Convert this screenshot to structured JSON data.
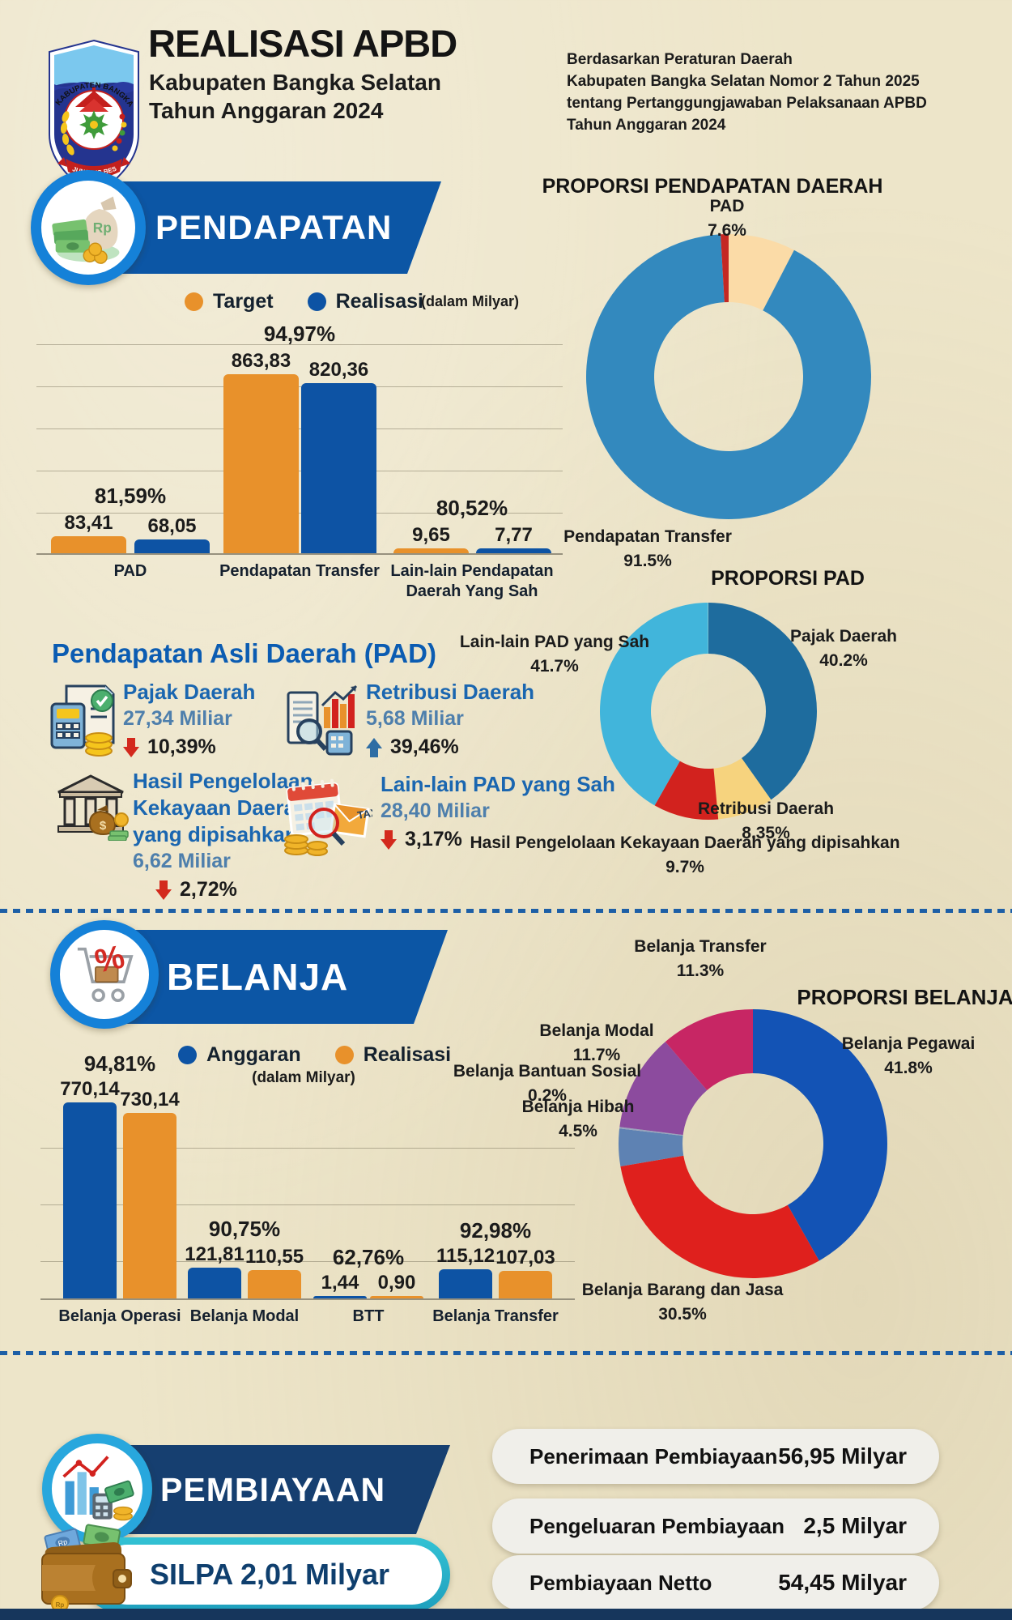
{
  "header": {
    "title": "REALISASI APBD",
    "subtitle1": "Kabupaten Bangka Selatan",
    "subtitle2": "Tahun Anggaran 2024",
    "legal": "Berdasarkan Peraturan Daerah\nKabupaten Bangka Selatan Nomor 2 Tahun 2025\ntentang Pertanggungjawaban Pelaksanaan APBD\nTahun Anggaran 2024",
    "logo": {
      "region": "KABUPATEN BANGKA SELATAN",
      "motto": "JUNJUNG BESAOH"
    }
  },
  "pendapatan": {
    "banner": "PENDAPATAN",
    "legend": [
      {
        "label": "Target",
        "color": "#E8912B"
      },
      {
        "label": "Realisasi",
        "color": "#0D53A4"
      }
    ],
    "unit": "(dalam Milyar)"
  },
  "pad_section": {
    "title": "Pendapatan Asli Daerah (PAD)",
    "items": [
      {
        "name": "Pajak Daerah",
        "value": "27,34 Miliar",
        "change": "10,39%",
        "direction": "down",
        "icon": "tax-calculator-icon"
      },
      {
        "name": "Retribusi Daerah",
        "value": "5,68 Miliar",
        "change": "39,46%",
        "direction": "up",
        "icon": "report-magnifier-icon"
      },
      {
        "name": "Hasil Pengelolaan Kekayaan Daerah yang dipisahkan",
        "value": "6,62 Miliar",
        "change": "2,72%",
        "direction": "down",
        "icon": "bank-building-icon"
      },
      {
        "name": "Lain-lain PAD yang Sah",
        "value": "28,40 Miliar",
        "change": "3,17%",
        "direction": "down",
        "icon": "tax-calendar-icon"
      }
    ]
  },
  "belanja": {
    "banner": "BELANJA",
    "legend": [
      {
        "label": "Anggaran",
        "color": "#0D53A4"
      },
      {
        "label": "Realisasi",
        "color": "#E8912B"
      }
    ],
    "unit": "(dalam Milyar)"
  },
  "pembiayaan": {
    "banner": "PEMBIAYAAN",
    "rows": [
      {
        "label": "Penerimaan Pembiayaan",
        "value": "56,95 Milyar"
      },
      {
        "label": "Pengeluaran Pembiayaan",
        "value": "2,5 Milyar"
      },
      {
        "label": "Pembiayaan Netto",
        "value": "54,45 Milyar"
      }
    ],
    "silpa": "SILPA 2,01 Milyar"
  },
  "chart_data": [
    {
      "id": "pendapatan_bar",
      "type": "bar",
      "title": "PENDAPATAN",
      "unit": "Milyar",
      "grid": true,
      "legend_position": "top",
      "ylim": [
        0,
        1050
      ],
      "categories": [
        "PAD",
        "Pendapatan Transfer",
        "Lain-lain Pendapatan Daerah Yang Sah"
      ],
      "series": [
        {
          "name": "Target",
          "color": "#E8912B",
          "values": [
            83.41,
            863.83,
            9.65
          ]
        },
        {
          "name": "Realisasi",
          "color": "#0D53A4",
          "values": [
            68.05,
            820.36,
            7.77
          ]
        }
      ],
      "value_labels": [
        [
          "83,41",
          "863,83",
          "9,65"
        ],
        [
          "68,05",
          "820,36",
          "7,77"
        ]
      ],
      "pct_labels": [
        "81,59%",
        "94,97%",
        "80,52%"
      ]
    },
    {
      "id": "pendapatan_donut",
      "type": "pie",
      "title": "PROPORSI PENDAPATAN DAERAH",
      "slices": [
        {
          "label": "PAD",
          "pct": 7.6,
          "color": "#FBDBA7"
        },
        {
          "label": "Pendapatan Transfer",
          "pct": 91.5,
          "color": "#3389BE"
        },
        {
          "label": "Lain-lain Pendapatan Daerah Yang Sah",
          "pct": 0.9,
          "color": "#C42823"
        }
      ]
    },
    {
      "id": "pad_donut",
      "type": "pie",
      "title": "PROPORSI PAD",
      "slices": [
        {
          "label": "Pajak Daerah",
          "pct": 40.2,
          "color": "#1E6C9E"
        },
        {
          "label": "Retribusi Daerah",
          "pct": 8.35,
          "color": "#F6D37E"
        },
        {
          "label": "Hasil Pengelolaan Kekayaan Daerah yang dipisahkan",
          "pct": 9.7,
          "color": "#D2221E"
        },
        {
          "label": "Lain-lain PAD yang Sah",
          "pct": 41.7,
          "color": "#41B5DB"
        }
      ]
    },
    {
      "id": "belanja_bar",
      "type": "bar",
      "title": "BELANJA",
      "unit": "Milyar",
      "grid": true,
      "legend_position": "top",
      "ylim": [
        0,
        840
      ],
      "categories": [
        "Belanja Operasi",
        "Belanja Modal",
        "BTT",
        "Belanja Transfer"
      ],
      "series": [
        {
          "name": "Anggaran",
          "color": "#0D53A4",
          "values": [
            770.14,
            121.81,
            1.44,
            115.12
          ]
        },
        {
          "name": "Realisasi",
          "color": "#E8912B",
          "values": [
            730.14,
            110.55,
            0.9,
            107.03
          ]
        }
      ],
      "value_labels": [
        [
          "770,14",
          "121,81",
          "1,44",
          "115,12"
        ],
        [
          "730,14",
          "110,55",
          "0,90",
          "107,03"
        ]
      ],
      "pct_labels": [
        "94,81%",
        "90,75%",
        "62,76%",
        "92,98%"
      ]
    },
    {
      "id": "belanja_donut",
      "type": "pie",
      "title": "PROPORSI BELANJA",
      "slices": [
        {
          "label": "Belanja Pegawai",
          "pct": 41.8,
          "color": "#1353B5"
        },
        {
          "label": "Belanja Barang dan Jasa",
          "pct": 30.5,
          "color": "#DF201D"
        },
        {
          "label": "Belanja Hibah",
          "pct": 4.5,
          "color": "#5E82B3"
        },
        {
          "label": "Belanja Bantuan Sosial",
          "pct": 0.2,
          "color": "#98A5BF"
        },
        {
          "label": "Belanja Modal",
          "pct": 11.7,
          "color": "#8C4B9E"
        },
        {
          "label": "Belanja Transfer",
          "pct": 11.3,
          "color": "#C72664"
        }
      ]
    }
  ],
  "colors": {
    "background": "#EDE5C9",
    "banner_blue": "#0C56A5",
    "banner_navy": "#163F70",
    "dotted_divider": "#1D5FA6",
    "bottom_bar": "#16365C",
    "pad_title": "#0B5CB2",
    "item_name": "#1A66B0",
    "item_value": "#4E7FAC",
    "down_arrow": "#D3291D",
    "up_arrow": "#2E6DA4"
  }
}
